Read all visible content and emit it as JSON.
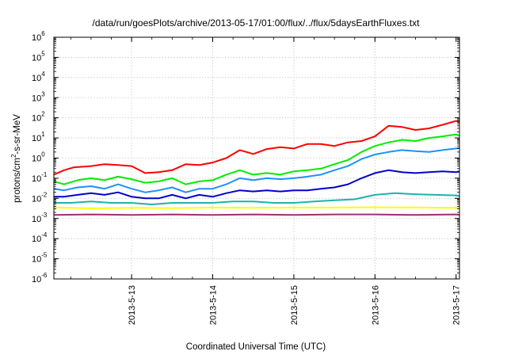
{
  "chart_data": {
    "type": "line",
    "title": "/data/run/goesPlots/archive/2013-05-17/01:00/flux/../flux/5daysEarthFluxes.txt",
    "xlabel": "Coordinated Universal Time (UTC)",
    "ylabel": {
      "base": "protons/cm",
      "sup": "2",
      "rest": "-s-sr-MeV"
    },
    "y_scale": "log",
    "ylim": [
      1e-06,
      1000000.0
    ],
    "xlim": [
      "2013-05-12 01:00",
      "2013-05-17 01:00"
    ],
    "grid": true,
    "legend": "none",
    "x_ticks": [
      "2013-5-13",
      "2013-5-14",
      "2013-5-15",
      "2013-5-16",
      "2013-5-17"
    ],
    "y_ticks": [
      {
        "base": "10",
        "exp": "-6"
      },
      {
        "base": "10",
        "exp": "-5"
      },
      {
        "base": "10",
        "exp": "-4"
      },
      {
        "base": "10",
        "exp": "-3"
      },
      {
        "base": "10",
        "exp": "-2"
      },
      {
        "base": "10",
        "exp": "-1"
      },
      {
        "base": "10",
        "exp": "0"
      },
      {
        "base": "10",
        "exp": "1"
      },
      {
        "base": "10",
        "exp": "2"
      },
      {
        "base": "10",
        "exp": "3"
      },
      {
        "base": "10",
        "exp": "4"
      },
      {
        "base": "10",
        "exp": "5"
      },
      {
        "base": "10",
        "exp": "6"
      }
    ],
    "series": [
      {
        "color": "#ff0000",
        "x": [
          "2013-05-12 01:00",
          "2013-05-12 04:00",
          "2013-05-12 07:00",
          "2013-05-12 12:00",
          "2013-05-12 16:00",
          "2013-05-12 20:00",
          "2013-05-13 00:00",
          "2013-05-13 04:00",
          "2013-05-13 08:00",
          "2013-05-13 12:00",
          "2013-05-13 16:00",
          "2013-05-13 20:00",
          "2013-05-14 00:00",
          "2013-05-14 04:00",
          "2013-05-14 08:00",
          "2013-05-14 12:00",
          "2013-05-14 16:00",
          "2013-05-14 20:00",
          "2013-05-15 00:00",
          "2013-05-15 04:00",
          "2013-05-15 08:00",
          "2013-05-15 12:00",
          "2013-05-15 16:00",
          "2013-05-15 20:00",
          "2013-05-16 00:00",
          "2013-05-16 04:00",
          "2013-05-16 08:00",
          "2013-05-16 12:00",
          "2013-05-16 16:00",
          "2013-05-16 20:00",
          "2013-05-17 00:00",
          "2013-05-17 01:00"
        ],
        "y": [
          0.15,
          0.25,
          0.35,
          0.4,
          0.5,
          0.45,
          0.4,
          0.18,
          0.2,
          0.25,
          0.5,
          0.45,
          0.6,
          1.0,
          2.5,
          1.6,
          2.8,
          3.5,
          3.0,
          5.0,
          5.0,
          4.0,
          6.0,
          7.0,
          12.0,
          40.0,
          35.0,
          25.0,
          30.0,
          45.0,
          70.0,
          60.0
        ]
      },
      {
        "color": "#00ee00",
        "x": [
          "2013-05-12 01:00",
          "2013-05-12 04:00",
          "2013-05-12 08:00",
          "2013-05-12 12:00",
          "2013-05-12 16:00",
          "2013-05-12 20:00",
          "2013-05-13 00:00",
          "2013-05-13 04:00",
          "2013-05-13 08:00",
          "2013-05-13 12:00",
          "2013-05-13 16:00",
          "2013-05-13 20:00",
          "2013-05-14 00:00",
          "2013-05-14 04:00",
          "2013-05-14 08:00",
          "2013-05-14 12:00",
          "2013-05-14 16:00",
          "2013-05-14 20:00",
          "2013-05-15 00:00",
          "2013-05-15 04:00",
          "2013-05-15 08:00",
          "2013-05-15 12:00",
          "2013-05-15 16:00",
          "2013-05-15 20:00",
          "2013-05-16 00:00",
          "2013-05-16 04:00",
          "2013-05-16 08:00",
          "2013-05-16 12:00",
          "2013-05-16 16:00",
          "2013-05-16 20:00",
          "2013-05-17 00:00",
          "2013-05-17 01:00"
        ],
        "y": [
          0.07,
          0.05,
          0.08,
          0.1,
          0.08,
          0.12,
          0.09,
          0.06,
          0.07,
          0.1,
          0.05,
          0.07,
          0.08,
          0.15,
          0.25,
          0.15,
          0.18,
          0.15,
          0.22,
          0.25,
          0.3,
          0.5,
          0.8,
          2.0,
          4.0,
          6.0,
          8.0,
          7.0,
          10.0,
          12.0,
          15.0,
          13.0
        ]
      },
      {
        "color": "#1e90ff",
        "x": [
          "2013-05-12 01:00",
          "2013-05-12 04:00",
          "2013-05-12 08:00",
          "2013-05-12 12:00",
          "2013-05-12 16:00",
          "2013-05-12 20:00",
          "2013-05-13 00:00",
          "2013-05-13 04:00",
          "2013-05-13 08:00",
          "2013-05-13 12:00",
          "2013-05-13 16:00",
          "2013-05-13 20:00",
          "2013-05-14 00:00",
          "2013-05-14 04:00",
          "2013-05-14 08:00",
          "2013-05-14 12:00",
          "2013-05-14 16:00",
          "2013-05-14 20:00",
          "2013-05-15 00:00",
          "2013-05-15 04:00",
          "2013-05-15 08:00",
          "2013-05-15 12:00",
          "2013-05-15 16:00",
          "2013-05-15 20:00",
          "2013-05-16 00:00",
          "2013-05-16 04:00",
          "2013-05-16 08:00",
          "2013-05-16 12:00",
          "2013-05-16 16:00",
          "2013-05-16 20:00",
          "2013-05-17 00:00",
          "2013-05-17 01:00"
        ],
        "y": [
          0.03,
          0.025,
          0.035,
          0.04,
          0.03,
          0.05,
          0.03,
          0.02,
          0.025,
          0.035,
          0.02,
          0.03,
          0.03,
          0.05,
          0.1,
          0.08,
          0.1,
          0.09,
          0.1,
          0.12,
          0.15,
          0.25,
          0.4,
          0.9,
          1.5,
          2.0,
          2.5,
          2.2,
          2.0,
          2.5,
          3.0,
          3.2
        ]
      },
      {
        "color": "#0000cc",
        "x": [
          "2013-05-12 01:00",
          "2013-05-12 04:00",
          "2013-05-12 08:00",
          "2013-05-12 12:00",
          "2013-05-12 16:00",
          "2013-05-12 20:00",
          "2013-05-13 00:00",
          "2013-05-13 04:00",
          "2013-05-13 08:00",
          "2013-05-13 12:00",
          "2013-05-13 16:00",
          "2013-05-13 20:00",
          "2013-05-14 00:00",
          "2013-05-14 04:00",
          "2013-05-14 08:00",
          "2013-05-14 12:00",
          "2013-05-14 16:00",
          "2013-05-14 20:00",
          "2013-05-15 00:00",
          "2013-05-15 04:00",
          "2013-05-15 08:00",
          "2013-05-15 12:00",
          "2013-05-15 16:00",
          "2013-05-15 20:00",
          "2013-05-16 00:00",
          "2013-05-16 04:00",
          "2013-05-16 08:00",
          "2013-05-16 12:00",
          "2013-05-16 16:00",
          "2013-05-16 20:00",
          "2013-05-17 00:00",
          "2013-05-17 01:00"
        ],
        "y": [
          0.012,
          0.012,
          0.015,
          0.018,
          0.015,
          0.02,
          0.012,
          0.01,
          0.01,
          0.015,
          0.01,
          0.015,
          0.012,
          0.018,
          0.025,
          0.022,
          0.025,
          0.022,
          0.025,
          0.025,
          0.03,
          0.035,
          0.05,
          0.1,
          0.18,
          0.25,
          0.2,
          0.18,
          0.2,
          0.22,
          0.2,
          0.22
        ]
      },
      {
        "color": "#20b2aa",
        "x": [
          "2013-05-12 01:00",
          "2013-05-12 06:00",
          "2013-05-12 12:00",
          "2013-05-12 18:00",
          "2013-05-13 00:00",
          "2013-05-13 06:00",
          "2013-05-13 12:00",
          "2013-05-13 18:00",
          "2013-05-14 00:00",
          "2013-05-14 06:00",
          "2013-05-14 12:00",
          "2013-05-14 18:00",
          "2013-05-15 00:00",
          "2013-05-15 06:00",
          "2013-05-15 12:00",
          "2013-05-15 18:00",
          "2013-05-16 00:00",
          "2013-05-16 06:00",
          "2013-05-16 12:00",
          "2013-05-16 18:00",
          "2013-05-17 00:00",
          "2013-05-17 01:00"
        ],
        "y": [
          0.006,
          0.006,
          0.007,
          0.006,
          0.006,
          0.005,
          0.006,
          0.006,
          0.006,
          0.007,
          0.007,
          0.006,
          0.006,
          0.007,
          0.008,
          0.009,
          0.015,
          0.018,
          0.016,
          0.015,
          0.014,
          0.013
        ]
      },
      {
        "color": "#ffff00",
        "x": [
          "2013-05-12 01:00",
          "2013-05-12 12:00",
          "2013-05-13 00:00",
          "2013-05-13 12:00",
          "2013-05-14 00:00",
          "2013-05-14 12:00",
          "2013-05-15 00:00",
          "2013-05-15 12:00",
          "2013-05-16 00:00",
          "2013-05-16 12:00",
          "2013-05-17 00:00",
          "2013-05-17 01:00"
        ],
        "y": [
          0.0035,
          0.0032,
          0.0034,
          0.0033,
          0.0035,
          0.0034,
          0.0035,
          0.0035,
          0.0036,
          0.0035,
          0.0034,
          0.0034
        ]
      },
      {
        "color": "#a0306a",
        "x": [
          "2013-05-12 01:00",
          "2013-05-12 12:00",
          "2013-05-13 00:00",
          "2013-05-13 12:00",
          "2013-05-14 00:00",
          "2013-05-14 12:00",
          "2013-05-15 00:00",
          "2013-05-15 12:00",
          "2013-05-16 00:00",
          "2013-05-16 12:00",
          "2013-05-17 00:00",
          "2013-05-17 01:00"
        ],
        "y": [
          0.0015,
          0.0016,
          0.0015,
          0.0016,
          0.0015,
          0.0016,
          0.0015,
          0.0016,
          0.0016,
          0.0015,
          0.0016,
          0.0015
        ]
      }
    ]
  }
}
